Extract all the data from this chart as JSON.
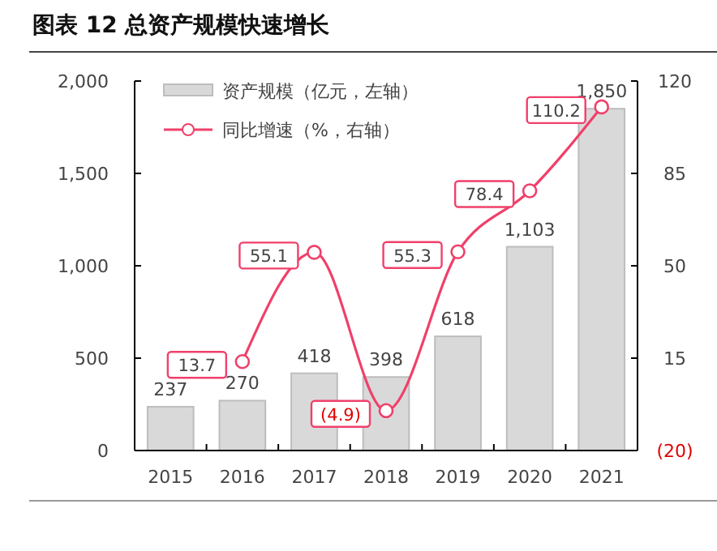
{
  "chart_data": {
    "type": "bar",
    "title": "图表 12 总资产规模快速增长",
    "categories": [
      "2015",
      "2016",
      "2017",
      "2018",
      "2019",
      "2020",
      "2021"
    ],
    "series": [
      {
        "name": "资产规模（亿元，左轴）",
        "color": "#d9d9d9",
        "values": [
          237,
          270,
          418,
          398,
          618,
          1103,
          1850
        ],
        "value_labels": [
          "237",
          "270",
          "418",
          "398",
          "618",
          "1,103",
          "1,850"
        ]
      },
      {
        "name": "同比增速（%，右轴）",
        "type": "line",
        "axis": "y2",
        "color": "#f0406a",
        "values": [
          null,
          13.7,
          55.1,
          -4.9,
          55.3,
          78.4,
          110.2
        ],
        "value_labels": [
          null,
          "13.7",
          "55.1",
          "(4.9)",
          "55.3",
          "78.4",
          "110.2"
        ],
        "marker": "circle"
      }
    ],
    "ylim": [
      0,
      2000
    ],
    "yticks": [
      0,
      {
        "value": 500,
        "label": "500"
      },
      {
        "value": 1000,
        "label": "1,000"
      },
      {
        "value": 1500,
        "label": "1,500"
      },
      {
        "value": 2000,
        "label": "2,000"
      }
    ],
    "y2lim": [
      -20,
      120
    ],
    "y2ticks": [
      {
        "value": -20,
        "label": "(20)"
      },
      15,
      50,
      85,
      120
    ],
    "legend": "top left",
    "grid": false
  }
}
